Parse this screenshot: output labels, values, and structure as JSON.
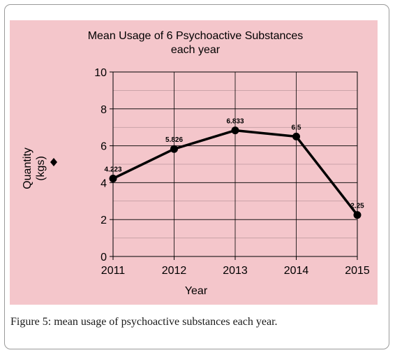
{
  "chart_data": {
    "type": "line",
    "title_line1": "Mean Usage of 6 Psychoactive Substances",
    "title_line2": "each year",
    "xlabel": "Year",
    "ylabel_line1": "Quantity",
    "ylabel_line2": "(kgs)",
    "categories": [
      "2011",
      "2012",
      "2013",
      "2014",
      "2015"
    ],
    "values": [
      4.223,
      5.826,
      6.833,
      6.5,
      2.25
    ],
    "data_labels": [
      "4.223",
      "5.826",
      "6.833",
      "6.5",
      "2.25"
    ],
    "ylim": [
      0,
      10
    ],
    "yticks": [
      "0",
      "2",
      "4",
      "6",
      "8",
      "10"
    ],
    "grid": true,
    "legend": "left",
    "colors": {
      "background": "#f4c6cb",
      "line": "#000000",
      "grid": "#000000"
    }
  },
  "caption": {
    "label": "Figure 5:",
    "text": " mean usage of psychoactive substances each year."
  }
}
